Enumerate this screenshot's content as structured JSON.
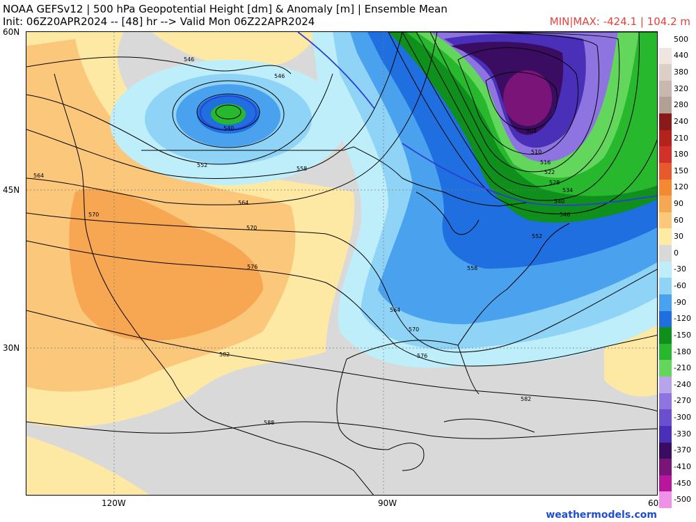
{
  "header": {
    "title_line1": "NOAA GEFSv12 | 500 hPa Geopotential Height [dm] & Anomaly [m] | Ensemble Mean",
    "title_line2": "Init: 06Z20APR2024 -- [48] hr --> Valid Mon 06Z22APR2024",
    "minmax": "MIN|MAX: -424.1 | 104.2 m"
  },
  "axes": {
    "lat_labels": [
      "60N",
      "45N",
      "30N"
    ],
    "lon_labels": [
      "120W",
      "90W",
      "60"
    ]
  },
  "contour_labels": {
    "a546": "546",
    "b546": "546",
    "c540": "540",
    "d552": "552",
    "e558": "558",
    "f564": "564",
    "g564": "564",
    "h570": "570",
    "i570": "570",
    "j576": "576",
    "k582": "582",
    "l588": "588",
    "m504": "504",
    "n510": "510",
    "o516": "516",
    "p522": "522",
    "q528": "528",
    "r534": "534",
    "s540": "540",
    "t546": "546",
    "u552": "552",
    "v558": "558",
    "w564": "564",
    "x570": "570",
    "y576": "576",
    "z582": "582"
  },
  "colorbar": {
    "entries": [
      {
        "label": "500",
        "color": "#ffffff"
      },
      {
        "label": "440",
        "color": "#efe6e1"
      },
      {
        "label": "380",
        "color": "#dccfc8"
      },
      {
        "label": "320",
        "color": "#c9b8b0"
      },
      {
        "label": "280",
        "color": "#b49f96"
      },
      {
        "label": "240",
        "color": "#8a1a1a"
      },
      {
        "label": "210",
        "color": "#b3221d"
      },
      {
        "label": "180",
        "color": "#d2312a"
      },
      {
        "label": "150",
        "color": "#e85a2b"
      },
      {
        "label": "120",
        "color": "#f28a33"
      },
      {
        "label": "90",
        "color": "#f7a652"
      },
      {
        "label": "60",
        "color": "#fac77b"
      },
      {
        "label": "30",
        "color": "#fdeaa3"
      },
      {
        "label": "0",
        "color": "#d9d9d9"
      },
      {
        "label": "-30",
        "color": "#bfeefb"
      },
      {
        "label": "-60",
        "color": "#8fd4f7"
      },
      {
        "label": "-90",
        "color": "#4aa2ef"
      },
      {
        "label": "-120",
        "color": "#1f6fe0"
      },
      {
        "label": "-150",
        "color": "#0f8f1c"
      },
      {
        "label": "-180",
        "color": "#27b82e"
      },
      {
        "label": "-210",
        "color": "#62d75c"
      },
      {
        "label": "-240",
        "color": "#b7a4ec"
      },
      {
        "label": "-270",
        "color": "#8d74e0"
      },
      {
        "label": "-300",
        "color": "#6a4fcf"
      },
      {
        "label": "-330",
        "color": "#4a2fb8"
      },
      {
        "label": "-370",
        "color": "#3a0d63"
      },
      {
        "label": "-410",
        "color": "#7a1478"
      },
      {
        "label": "-450",
        "color": "#b8169f"
      },
      {
        "label": "-500",
        "color": "#f090e8"
      }
    ]
  },
  "colors": {
    "neutral": "#d9d9d9",
    "warm_light": "#fde9a3",
    "warm_mid": "#fac77b",
    "warm_strong": "#f7a652",
    "cold_light": "#bfeefb",
    "cold_mid": "#8fd4f7",
    "cold_blue": "#4aa2ef",
    "cold_deep": "#1f6fe0",
    "green_dark": "#0f8f1c",
    "green_mid": "#27b82e",
    "green_light": "#62d75c",
    "purple_light": "#8d74e0",
    "purple_mid": "#4a2fb8",
    "purple_dark": "#3a0d63",
    "magenta": "#7a1478",
    "contour": "#000000",
    "contour_highlight": "#2a3fd6"
  },
  "credit": "weathermodels.com"
}
